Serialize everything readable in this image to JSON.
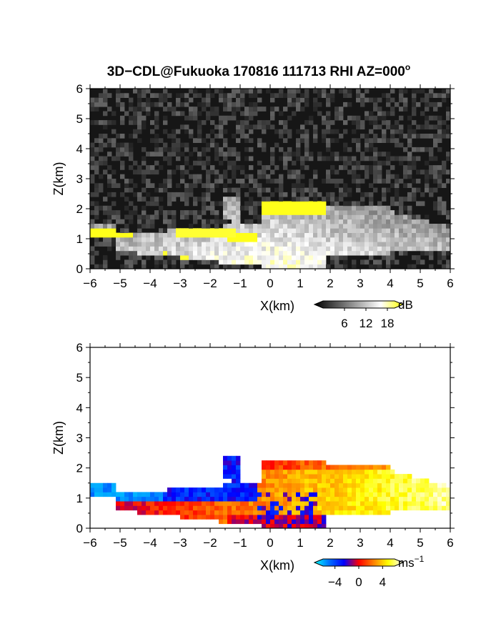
{
  "figure": {
    "title_main": "3D−CDL@Fukuoka 170816 111713 RHI AZ=000",
    "title_sup": "o"
  },
  "chart_data": [
    {
      "type": "heatmap",
      "name": "reflectivity-panel",
      "xlabel": "X(km)",
      "ylabel": "Z(km)",
      "xlim": [
        -6,
        6
      ],
      "ylim": [
        0,
        6
      ],
      "x_ticks": [
        "−6",
        "−5",
        "−4",
        "−3",
        "−2",
        "−1",
        "0",
        "1",
        "2",
        "3",
        "4",
        "5",
        "6"
      ],
      "y_ticks": [
        "0",
        "1",
        "2",
        "3",
        "4",
        "5",
        "6"
      ],
      "grid": false,
      "colorbar": {
        "unit": "dB",
        "tick_labels": [
          "6",
          "12",
          "18"
        ],
        "tick_values": [
          6,
          12,
          18
        ],
        "range": [
          0,
          20
        ],
        "colors": [
          "#000000",
          "#555555",
          "#aaaaaa",
          "#ffffff",
          "#ffff00"
        ]
      },
      "features": {
        "low_signal_fill": "#161616",
        "high_value_color": "#ffff00"
      }
    },
    {
      "type": "heatmap",
      "name": "velocity-panel",
      "xlabel": "X(km)",
      "ylabel": "Z(km)",
      "xlim": [
        -6,
        6
      ],
      "ylim": [
        0,
        6
      ],
      "x_ticks": [
        "−6",
        "−5",
        "−4",
        "−3",
        "−2",
        "−1",
        "0",
        "1",
        "2",
        "3",
        "4",
        "5",
        "6"
      ],
      "y_ticks": [
        "0",
        "1",
        "2",
        "3",
        "4",
        "5",
        "6"
      ],
      "grid": false,
      "colorbar": {
        "unit": "ms",
        "unit_sup": "−1",
        "tick_labels": [
          "−4",
          "0",
          "4"
        ],
        "tick_values": [
          -4,
          0,
          4
        ],
        "range": [
          -6,
          6
        ],
        "colors": [
          "#00ffff",
          "#0070ff",
          "#0000ff",
          "#ff0000",
          "#ff8000",
          "#ffff00",
          "#ffffff"
        ]
      },
      "features": {
        "no_data_fill": "#ffffff"
      }
    }
  ]
}
